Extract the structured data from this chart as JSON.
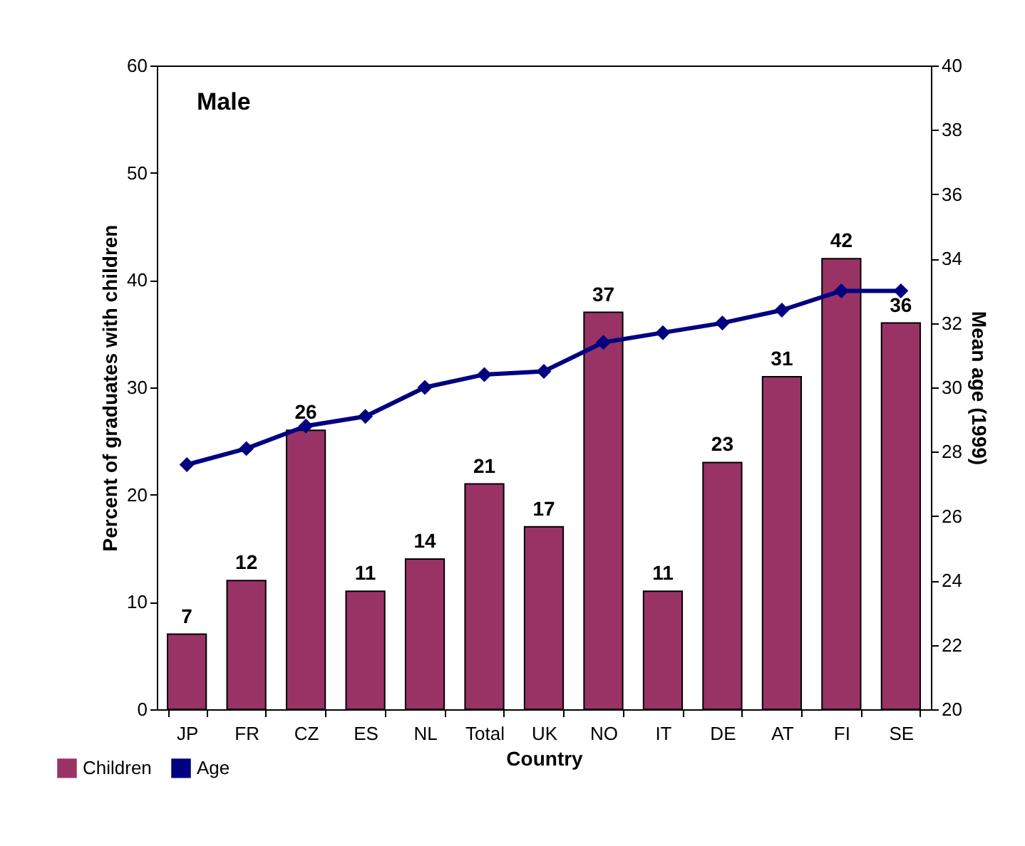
{
  "chart_data": {
    "type": "bar",
    "xlabel": "Country",
    "ylabel": "Percent of graduates with children",
    "y2label": "Mean age (1999)",
    "annotations": [
      "Male"
    ],
    "categories": [
      "JP",
      "FR",
      "CZ",
      "ES",
      "NL",
      "Total",
      "UK",
      "NO",
      "IT",
      "DE",
      "AT",
      "FI",
      "SE"
    ],
    "series": [
      {
        "name": "Children",
        "color": "#993366",
        "values": [
          7,
          12,
          26,
          11,
          14,
          21,
          17,
          37,
          11,
          23,
          31,
          42,
          36
        ],
        "value_labels": [
          "7",
          "12",
          "26",
          "11",
          "14",
          "21",
          "17",
          "37",
          "11",
          "23",
          "31",
          "42",
          "36"
        ]
      },
      {
        "name": "Age",
        "type": "line",
        "axis": "y2",
        "color": "#000080",
        "marker": "diamond",
        "values": [
          27.6,
          28.1,
          28.8,
          29.1,
          30.0,
          30.4,
          30.5,
          31.4,
          31.7,
          32.0,
          32.4,
          33.0,
          33.0
        ]
      }
    ],
    "ylim": [
      0,
      60
    ],
    "yticks": [
      0,
      10,
      20,
      30,
      40,
      50,
      60
    ],
    "y2lim": [
      20,
      40
    ],
    "y2ticks": [
      20,
      22,
      24,
      26,
      28,
      30,
      32,
      34,
      36,
      38,
      40
    ],
    "grid": false,
    "legend": "bottom left"
  }
}
